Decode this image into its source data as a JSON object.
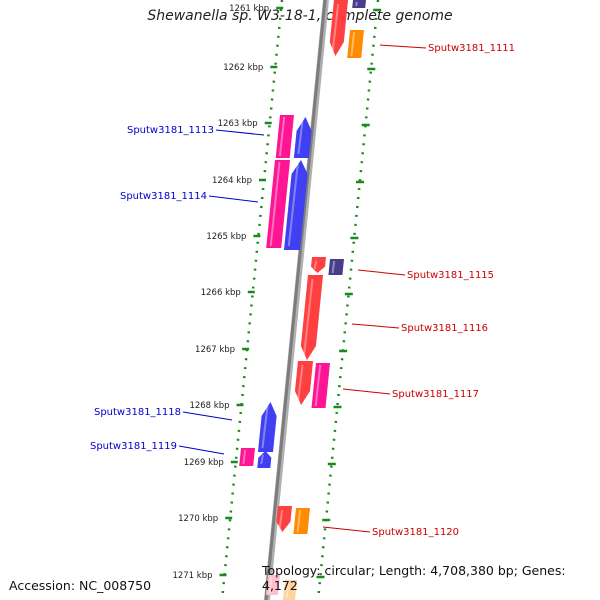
{
  "title": "Shewanella sp. W3-18-1, complete genome",
  "footer": {
    "accession": "Accession: NC_008750",
    "summary": "Topology: circular; Length: 4,708,380 bp; Genes: 4,172"
  },
  "colors": {
    "backbone": "#8a8a8a",
    "ticks": "#1a8a1a",
    "forward_label": "#0000cc",
    "reverse_label": "#cc0000",
    "red": "#ff0000",
    "magenta": "#ff1493",
    "blue": "#0000ee",
    "orange": "#ff8c00",
    "purple": "#483d8b"
  },
  "ticks": [
    "1261 kbp",
    "1262 kbp",
    "1263 kbp",
    "1264 kbp",
    "1265 kbp",
    "1266 kbp",
    "1267 kbp",
    "1268 kbp",
    "1269 kbp",
    "1270 kbp",
    "1271 kbp"
  ],
  "genes_forward": [
    {
      "label": "Sputw3181_1113"
    },
    {
      "label": "Sputw3181_1114"
    },
    {
      "label": "Sputw3181_1118"
    },
    {
      "label": "Sputw3181_1119"
    }
  ],
  "genes_reverse": [
    {
      "label": "Sputw3181_1111"
    },
    {
      "label": "Sputw3181_1115"
    },
    {
      "label": "Sputw3181_1116"
    },
    {
      "label": "Sputw3181_1117"
    },
    {
      "label": "Sputw3181_1120"
    }
  ]
}
